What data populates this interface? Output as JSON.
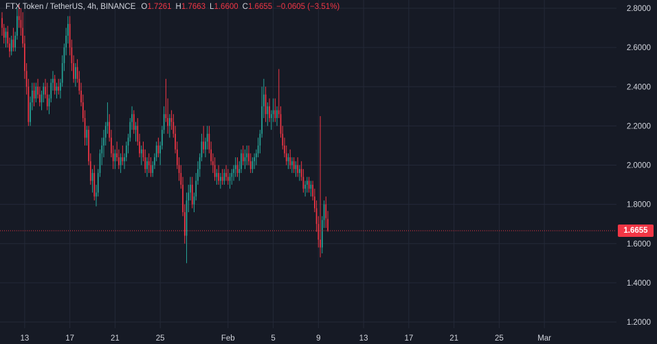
{
  "legend": {
    "symbol": "FTX Token / TetherUS, 4h, BINANCE",
    "open_label": "O",
    "open": "1.7261",
    "high_label": "H",
    "high": "1.7663",
    "low_label": "L",
    "low": "1.6600",
    "close_label": "C",
    "close": "1.6655",
    "change": "−0.0605 (−3.51%)"
  },
  "colors": {
    "background": "#161a25",
    "grid": "#242938",
    "up": "#26a69a",
    "down": "#f23645",
    "text": "#d1d4dc",
    "price_line": "#f23645"
  },
  "current_price_label": "1.6655",
  "chart_data": {
    "type": "candlestick",
    "symbol": "FTX Token / TetherUS",
    "interval": "4h",
    "exchange": "BINANCE",
    "ylim": [
      1.15,
      2.82
    ],
    "y_ticks": [
      "2.8000",
      "2.6000",
      "2.4000",
      "2.2000",
      "2.0000",
      "1.8000",
      "1.6000",
      "1.4000",
      "1.2000"
    ],
    "y_tick_values": [
      2.8,
      2.6,
      2.4,
      2.2,
      2.0,
      1.8,
      1.6,
      1.4,
      1.2
    ],
    "x_ticks": [
      "13",
      "17",
      "21",
      "25",
      "Feb",
      "5",
      "9",
      "13",
      "17",
      "21",
      "25",
      "Mar"
    ],
    "x_tick_bars": [
      12,
      36,
      60,
      84,
      120,
      144,
      168,
      192,
      216,
      240,
      264,
      288
    ],
    "current_price": 1.6655,
    "grid": true,
    "ohlc": [
      [
        2.75,
        2.78,
        2.66,
        2.7
      ],
      [
        2.7,
        2.72,
        2.62,
        2.65
      ],
      [
        2.65,
        2.7,
        2.6,
        2.68
      ],
      [
        2.68,
        2.71,
        2.6,
        2.62
      ],
      [
        2.62,
        2.65,
        2.55,
        2.58
      ],
      [
        2.58,
        2.66,
        2.56,
        2.64
      ],
      [
        2.64,
        2.7,
        2.58,
        2.6
      ],
      [
        2.6,
        2.68,
        2.58,
        2.66
      ],
      [
        2.66,
        2.8,
        2.64,
        2.76
      ],
      [
        2.76,
        2.82,
        2.7,
        2.74
      ],
      [
        2.74,
        2.8,
        2.66,
        2.7
      ],
      [
        2.7,
        2.78,
        2.6,
        2.62
      ],
      [
        2.62,
        2.66,
        2.44,
        2.48
      ],
      [
        2.48,
        2.52,
        2.36,
        2.4
      ],
      [
        2.4,
        2.44,
        2.2,
        2.22
      ],
      [
        2.22,
        2.35,
        2.2,
        2.32
      ],
      [
        2.32,
        2.42,
        2.28,
        2.38
      ],
      [
        2.38,
        2.42,
        2.3,
        2.34
      ],
      [
        2.34,
        2.42,
        2.32,
        2.4
      ],
      [
        2.4,
        2.44,
        2.34,
        2.36
      ],
      [
        2.36,
        2.4,
        2.3,
        2.32
      ],
      [
        2.32,
        2.38,
        2.28,
        2.36
      ],
      [
        2.36,
        2.42,
        2.32,
        2.4
      ],
      [
        2.4,
        2.44,
        2.34,
        2.36
      ],
      [
        2.36,
        2.42,
        2.28,
        2.3
      ],
      [
        2.3,
        2.36,
        2.26,
        2.34
      ],
      [
        2.34,
        2.44,
        2.32,
        2.42
      ],
      [
        2.42,
        2.48,
        2.38,
        2.44
      ],
      [
        2.44,
        2.46,
        2.36,
        2.38
      ],
      [
        2.38,
        2.42,
        2.34,
        2.4
      ],
      [
        2.4,
        2.44,
        2.36,
        2.38
      ],
      [
        2.38,
        2.44,
        2.34,
        2.42
      ],
      [
        2.42,
        2.56,
        2.4,
        2.52
      ],
      [
        2.52,
        2.62,
        2.48,
        2.6
      ],
      [
        2.6,
        2.7,
        2.56,
        2.66
      ],
      [
        2.66,
        2.76,
        2.62,
        2.72
      ],
      [
        2.72,
        2.76,
        2.56,
        2.6
      ],
      [
        2.6,
        2.64,
        2.48,
        2.52
      ],
      [
        2.52,
        2.56,
        2.42,
        2.44
      ],
      [
        2.44,
        2.52,
        2.4,
        2.5
      ],
      [
        2.5,
        2.54,
        2.42,
        2.44
      ],
      [
        2.44,
        2.48,
        2.36,
        2.38
      ],
      [
        2.38,
        2.42,
        2.3,
        2.32
      ],
      [
        2.32,
        2.36,
        2.22,
        2.24
      ],
      [
        2.24,
        2.28,
        2.1,
        2.14
      ],
      [
        2.14,
        2.2,
        2.1,
        2.18
      ],
      [
        2.18,
        2.2,
        2.0,
        2.02
      ],
      [
        2.02,
        2.06,
        1.9,
        1.92
      ],
      [
        1.92,
        1.98,
        1.86,
        1.96
      ],
      [
        1.96,
        2.0,
        1.82,
        1.84
      ],
      [
        1.84,
        1.9,
        1.79,
        1.86
      ],
      [
        1.86,
        1.98,
        1.84,
        1.96
      ],
      [
        1.96,
        2.08,
        1.94,
        2.06
      ],
      [
        2.06,
        2.14,
        2.0,
        2.1
      ],
      [
        2.1,
        2.18,
        2.04,
        2.14
      ],
      [
        2.14,
        2.22,
        2.1,
        2.2
      ],
      [
        2.2,
        2.32,
        2.16,
        2.22
      ],
      [
        2.22,
        2.26,
        2.12,
        2.14
      ],
      [
        2.14,
        2.18,
        2.04,
        2.06
      ],
      [
        2.06,
        2.1,
        1.98,
        2.02
      ],
      [
        2.02,
        2.08,
        1.98,
        2.06
      ],
      [
        2.06,
        2.12,
        2.02,
        2.04
      ],
      [
        2.04,
        2.08,
        1.98,
        2.0
      ],
      [
        2.0,
        2.06,
        1.96,
        2.04
      ],
      [
        2.04,
        2.1,
        2.0,
        2.02
      ],
      [
        2.02,
        2.06,
        1.98,
        2.04
      ],
      [
        2.04,
        2.12,
        2.02,
        2.1
      ],
      [
        2.1,
        2.16,
        2.06,
        2.14
      ],
      [
        2.14,
        2.24,
        2.12,
        2.22
      ],
      [
        2.22,
        2.3,
        2.18,
        2.26
      ],
      [
        2.26,
        2.28,
        2.16,
        2.18
      ],
      [
        2.18,
        2.22,
        2.12,
        2.2
      ],
      [
        2.2,
        2.24,
        2.1,
        2.12
      ],
      [
        2.12,
        2.16,
        2.04,
        2.06
      ],
      [
        2.06,
        2.1,
        2.0,
        2.08
      ],
      [
        2.08,
        2.12,
        2.02,
        2.04
      ],
      [
        2.04,
        2.08,
        1.96,
        1.98
      ],
      [
        1.98,
        2.04,
        1.94,
        2.02
      ],
      [
        2.02,
        2.06,
        1.96,
        2.0
      ],
      [
        2.0,
        2.04,
        1.94,
        1.96
      ],
      [
        1.96,
        2.02,
        1.94,
        2.0
      ],
      [
        2.0,
        2.06,
        1.98,
        2.04
      ],
      [
        2.04,
        2.12,
        2.02,
        2.1
      ],
      [
        2.1,
        2.14,
        2.04,
        2.06
      ],
      [
        2.06,
        2.12,
        2.0,
        2.1
      ],
      [
        2.1,
        2.2,
        2.08,
        2.18
      ],
      [
        2.18,
        2.3,
        2.16,
        2.26
      ],
      [
        2.26,
        2.44,
        2.22,
        2.24
      ],
      [
        2.24,
        2.34,
        2.16,
        2.2
      ],
      [
        2.2,
        2.26,
        2.14,
        2.24
      ],
      [
        2.24,
        2.28,
        2.18,
        2.22
      ],
      [
        2.22,
        2.26,
        2.14,
        2.16
      ],
      [
        2.16,
        2.2,
        2.06,
        2.08
      ],
      [
        2.08,
        2.12,
        1.98,
        2.0
      ],
      [
        2.0,
        2.04,
        1.92,
        1.96
      ],
      [
        1.96,
        2.0,
        1.88,
        1.9
      ],
      [
        1.9,
        1.94,
        1.74,
        1.76
      ],
      [
        1.76,
        1.8,
        1.6,
        1.64
      ],
      [
        1.64,
        1.86,
        1.5,
        1.82
      ],
      [
        1.82,
        1.9,
        1.76,
        1.86
      ],
      [
        1.86,
        1.94,
        1.82,
        1.9
      ],
      [
        1.9,
        1.94,
        1.78,
        1.8
      ],
      [
        1.8,
        1.86,
        1.76,
        1.84
      ],
      [
        1.84,
        1.96,
        1.82,
        1.92
      ],
      [
        1.92,
        2.02,
        1.9,
        1.98
      ],
      [
        1.98,
        2.06,
        1.94,
        2.04
      ],
      [
        2.04,
        2.16,
        2.02,
        2.12
      ],
      [
        2.12,
        2.2,
        2.06,
        2.08
      ],
      [
        2.08,
        2.14,
        2.04,
        2.12
      ],
      [
        2.12,
        2.2,
        2.08,
        2.16
      ],
      [
        2.16,
        2.2,
        2.06,
        2.08
      ],
      [
        2.08,
        2.12,
        2.0,
        2.02
      ],
      [
        2.02,
        2.06,
        1.96,
        2.0
      ],
      [
        2.0,
        2.04,
        1.92,
        1.94
      ],
      [
        1.94,
        1.98,
        1.9,
        1.96
      ],
      [
        1.96,
        2.0,
        1.9,
        1.92
      ],
      [
        1.92,
        1.96,
        1.88,
        1.94
      ],
      [
        1.94,
        1.98,
        1.9,
        1.92
      ],
      [
        1.92,
        1.98,
        1.9,
        1.96
      ],
      [
        1.96,
        2.0,
        1.92,
        1.94
      ],
      [
        1.94,
        1.98,
        1.9,
        1.92
      ],
      [
        1.92,
        1.96,
        1.88,
        1.94
      ],
      [
        1.94,
        1.98,
        1.9,
        1.96
      ],
      [
        1.96,
        2.0,
        1.92,
        1.98
      ],
      [
        1.98,
        2.04,
        1.94,
        2.0
      ],
      [
        2.0,
        2.04,
        1.94,
        1.96
      ],
      [
        1.96,
        2.02,
        1.92,
        1.98
      ],
      [
        1.98,
        2.08,
        1.96,
        2.06
      ],
      [
        2.06,
        2.1,
        2.0,
        2.02
      ],
      [
        2.02,
        2.08,
        1.98,
        2.04
      ],
      [
        2.04,
        2.1,
        2.0,
        2.06
      ],
      [
        2.06,
        2.1,
        2.0,
        2.02
      ],
      [
        2.02,
        2.06,
        1.96,
        1.98
      ],
      [
        1.98,
        2.04,
        1.96,
        2.02
      ],
      [
        2.02,
        2.06,
        1.98,
        2.04
      ],
      [
        2.04,
        2.08,
        2.0,
        2.06
      ],
      [
        2.06,
        2.14,
        2.04,
        2.1
      ],
      [
        2.1,
        2.18,
        2.06,
        2.16
      ],
      [
        2.16,
        2.4,
        2.14,
        2.3
      ],
      [
        2.3,
        2.44,
        2.24,
        2.36
      ],
      [
        2.36,
        2.4,
        2.22,
        2.26
      ],
      [
        2.26,
        2.32,
        2.2,
        2.3
      ],
      [
        2.3,
        2.34,
        2.22,
        2.24
      ],
      [
        2.24,
        2.28,
        2.18,
        2.26
      ],
      [
        2.26,
        2.34,
        2.22,
        2.28
      ],
      [
        2.28,
        2.34,
        2.22,
        2.24
      ],
      [
        2.24,
        2.3,
        2.2,
        2.28
      ],
      [
        2.28,
        2.49,
        2.24,
        2.26
      ],
      [
        2.26,
        2.3,
        2.14,
        2.16
      ],
      [
        2.16,
        2.2,
        2.08,
        2.1
      ],
      [
        2.1,
        2.14,
        2.04,
        2.06
      ],
      [
        2.06,
        2.1,
        2.0,
        2.02
      ],
      [
        2.02,
        2.06,
        1.98,
        2.04
      ],
      [
        2.04,
        2.08,
        1.98,
        2.0
      ],
      [
        2.0,
        2.04,
        1.96,
        2.02
      ],
      [
        2.02,
        2.04,
        1.96,
        1.98
      ],
      [
        1.98,
        2.02,
        1.94,
        2.0
      ],
      [
        2.0,
        2.04,
        1.94,
        1.96
      ],
      [
        1.96,
        2.0,
        1.92,
        1.98
      ],
      [
        1.98,
        2.02,
        1.92,
        1.94
      ],
      [
        1.94,
        1.98,
        1.86,
        1.88
      ],
      [
        1.88,
        1.92,
        1.84,
        1.9
      ],
      [
        1.9,
        1.94,
        1.86,
        1.92
      ],
      [
        1.92,
        1.94,
        1.86,
        1.88
      ],
      [
        1.88,
        1.92,
        1.84,
        1.9
      ],
      [
        1.9,
        1.92,
        1.82,
        1.84
      ],
      [
        1.84,
        1.88,
        1.76,
        1.78
      ],
      [
        1.78,
        1.82,
        1.66,
        1.7
      ],
      [
        1.7,
        1.74,
        1.58,
        1.62
      ],
      [
        1.62,
        2.25,
        1.53,
        1.58
      ],
      [
        1.58,
        1.74,
        1.55,
        1.72
      ],
      [
        1.72,
        1.82,
        1.68,
        1.8
      ],
      [
        1.8,
        1.84,
        1.68,
        1.73
      ],
      [
        1.7261,
        1.7663,
        1.66,
        1.6655
      ]
    ]
  }
}
